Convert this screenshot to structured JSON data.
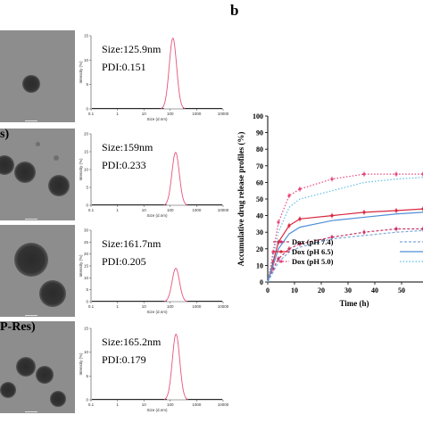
{
  "panel_letter": "b",
  "tem_labels": [
    "",
    "s)",
    "",
    "P-Res)"
  ],
  "chart_data": [
    {
      "type": "line",
      "panel": "a-1",
      "ylabel": "Intensity (%)",
      "xlabel": "Size (d.nm)",
      "x_scale": "log",
      "xlim": [
        0.1,
        10000
      ],
      "ylim": [
        0,
        15
      ],
      "x_ticks": [
        "0.1",
        "1",
        "10",
        "100",
        "1000",
        "10000"
      ],
      "y_ticks": [
        "0",
        "5",
        "10",
        "15"
      ],
      "annotations": [
        "Size:125.9nm",
        "PDI:0.151"
      ],
      "peak": {
        "center": 125.9,
        "height": 14.5
      }
    },
    {
      "type": "line",
      "panel": "a-2",
      "ylabel": "Intensity (%)",
      "xlabel": "Size (d.nm)",
      "x_scale": "log",
      "xlim": [
        0.1,
        10000
      ],
      "ylim": [
        0,
        20
      ],
      "x_ticks": [
        "0.1",
        "1",
        "10",
        "100",
        "1000",
        "10000"
      ],
      "y_ticks": [
        "0",
        "5",
        "10",
        "15",
        "20"
      ],
      "annotations": [
        "Size:159nm",
        "PDI:0.233"
      ],
      "peak": {
        "center": 159,
        "height": 14.8
      }
    },
    {
      "type": "line",
      "panel": "a-3",
      "ylabel": "Intensity (%)",
      "xlabel": "Size (d.nm)",
      "x_scale": "log",
      "xlim": [
        0.1,
        10000
      ],
      "ylim": [
        0,
        30
      ],
      "x_ticks": [
        "0.1",
        "1",
        "10",
        "100",
        "1000",
        "10000"
      ],
      "y_ticks": [
        "0",
        "5",
        "10",
        "15",
        "20",
        "25",
        "30"
      ],
      "annotations": [
        "Size:161.7nm",
        "PDI:0.205"
      ],
      "peak": {
        "center": 161.7,
        "height": 14.0
      }
    },
    {
      "type": "line",
      "panel": "a-4",
      "ylabel": "Intensity (%)",
      "xlabel": "Size (d.nm)",
      "x_scale": "log",
      "xlim": [
        0.1,
        10000
      ],
      "ylim": [
        0,
        15
      ],
      "x_ticks": [
        "0.1",
        "1",
        "10",
        "100",
        "1000",
        "10000"
      ],
      "y_ticks": [
        "0",
        "5",
        "10",
        "15"
      ],
      "annotations": [
        "Size:165.2nm",
        "PDI:0.179"
      ],
      "peak": {
        "center": 165.2,
        "height": 13.8
      }
    },
    {
      "type": "line",
      "panel": "b",
      "ylabel": "Accumulative drug release profiles (%)",
      "xlabel": "Time (h)",
      "xlim": [
        0,
        58
      ],
      "ylim": [
        0,
        100
      ],
      "x_ticks": [
        "0",
        "10",
        "20",
        "30",
        "40",
        "50"
      ],
      "y_ticks": [
        "0",
        "10",
        "20",
        "30",
        "40",
        "50",
        "60",
        "70",
        "80",
        "90",
        "100"
      ],
      "x": [
        0,
        2,
        4,
        8,
        12,
        24,
        36,
        48,
        58
      ],
      "series": [
        {
          "name": "Dox (pH 7.4)",
          "color": "#c8366a",
          "dash": "3,2",
          "values": [
            0,
            8,
            14,
            20,
            23,
            27,
            30,
            32,
            32
          ]
        },
        {
          "name": "Dox (pH 6.5)",
          "color": "#d8273f",
          "dash": "",
          "values": [
            0,
            12,
            24,
            34,
            38,
            40,
            42,
            43,
            44
          ]
        },
        {
          "name": "Dox (pH 5.0)",
          "color": "#e8447c",
          "dash": "1.5,2",
          "values": [
            0,
            18,
            36,
            52,
            56,
            62,
            65,
            65,
            65
          ]
        },
        {
          "name": "",
          "color": "#7aa9dd",
          "dash": "3,2",
          "values": [
            0,
            6,
            12,
            18,
            21,
            26,
            28,
            30,
            31
          ]
        },
        {
          "name": "",
          "color": "#4f8fd6",
          "dash": "",
          "values": [
            0,
            10,
            20,
            29,
            33,
            37,
            39,
            41,
            42
          ]
        },
        {
          "name": "",
          "color": "#5bbfe6",
          "dash": "1.5,2",
          "values": [
            0,
            15,
            30,
            45,
            50,
            55,
            60,
            62,
            63
          ]
        }
      ],
      "legend_location": "lower-right"
    }
  ]
}
